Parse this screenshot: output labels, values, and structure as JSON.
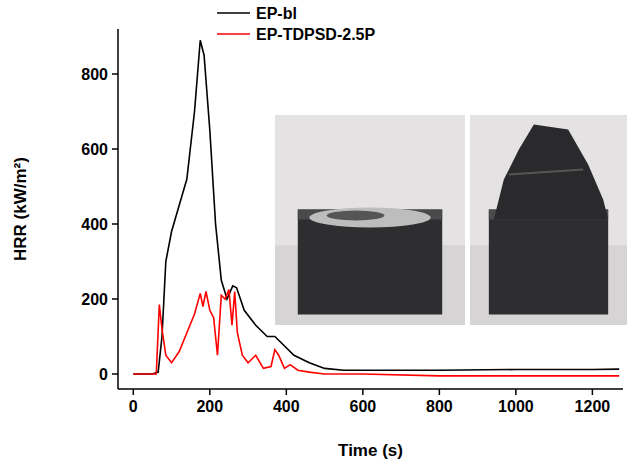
{
  "chart_data": {
    "type": "line",
    "x_label": "Time (s)",
    "y_label": "HRR (kW/m²)",
    "xlim": [
      -40,
      1280
    ],
    "ylim": [
      -40,
      920
    ],
    "xticks": [
      0,
      200,
      400,
      600,
      800,
      1000,
      1200
    ],
    "yticks": [
      0,
      200,
      400,
      600,
      800
    ],
    "legend": "upper center",
    "grid": false,
    "series": [
      {
        "name": "EP-bl",
        "color": "#000000",
        "line_style": "solid",
        "x": [
          0,
          50,
          65,
          75,
          85,
          100,
          120,
          140,
          160,
          175,
          185,
          200,
          215,
          230,
          245,
          260,
          270,
          290,
          320,
          350,
          370,
          390,
          420,
          460,
          500,
          550,
          600,
          800,
          1000,
          1200,
          1270
        ],
        "values": [
          0,
          0,
          5,
          100,
          300,
          380,
          450,
          520,
          700,
          890,
          850,
          650,
          400,
          250,
          200,
          235,
          230,
          170,
          130,
          100,
          100,
          80,
          50,
          30,
          15,
          10,
          10,
          10,
          12,
          12,
          13
        ]
      },
      {
        "name": "EP-TDPSD-2.5P",
        "color": "#ff0000",
        "line_style": "solid",
        "x": [
          0,
          50,
          60,
          68,
          75,
          85,
          100,
          120,
          140,
          160,
          175,
          182,
          190,
          200,
          210,
          220,
          230,
          240,
          250,
          258,
          265,
          272,
          285,
          300,
          320,
          340,
          360,
          370,
          380,
          395,
          410,
          430,
          460,
          500,
          600,
          800,
          1000,
          1270
        ],
        "values": [
          0,
          0,
          0,
          185,
          120,
          50,
          30,
          60,
          110,
          160,
          215,
          180,
          220,
          170,
          150,
          50,
          210,
          200,
          225,
          130,
          220,
          110,
          50,
          30,
          50,
          15,
          20,
          65,
          50,
          15,
          25,
          10,
          5,
          0,
          0,
          -5,
          -5,
          -5
        ]
      }
    ]
  }
}
